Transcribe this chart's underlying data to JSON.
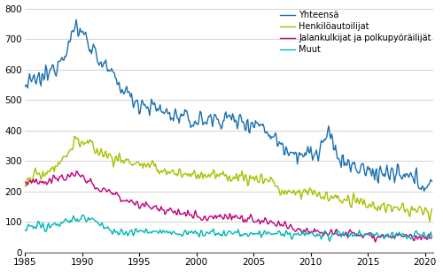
{
  "legend_labels": [
    "Yhteensä",
    "Henkilöautoilijat",
    "Jalankulkijat ja polkupyöräilijät",
    "Muut"
  ],
  "colors": [
    "#1a6faf",
    "#aabf00",
    "#c0007a",
    "#00b5b5"
  ],
  "linewidths": [
    1.0,
    1.0,
    1.0,
    1.0
  ],
  "ylim": [
    0,
    800
  ],
  "yticks": [
    0,
    100,
    200,
    300,
    400,
    500,
    600,
    700,
    800
  ],
  "xlim_start": 1985.0,
  "xlim_end": 2020.75,
  "xticks": [
    1985,
    1990,
    1995,
    2000,
    2005,
    2010,
    2015,
    2020
  ],
  "background_color": "#ffffff",
  "grid_color": "#cccccc",
  "fontsize_legend": 7,
  "fontsize_ticks": 7.5
}
